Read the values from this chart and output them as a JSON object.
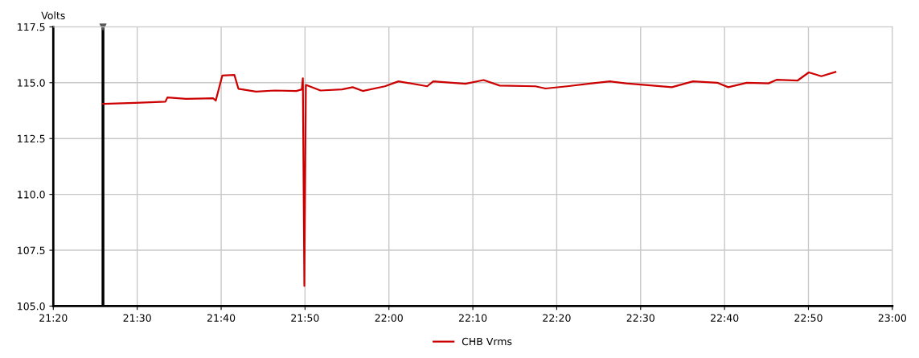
{
  "chart_data": {
    "type": "line",
    "ylabel": "Volts",
    "x": [
      21.432,
      21.496,
      21.556,
      21.56,
      21.597,
      21.651,
      21.656,
      21.669,
      21.693,
      21.701,
      21.736,
      21.773,
      21.816,
      21.827,
      21.829,
      21.832,
      21.835,
      21.864,
      21.907,
      21.928,
      21.948,
      21.992,
      22.019,
      22.076,
      22.088,
      22.152,
      22.188,
      22.22,
      22.291,
      22.311,
      22.354,
      22.396,
      22.439,
      22.471,
      22.524,
      22.562,
      22.604,
      22.652,
      22.674,
      22.711,
      22.754,
      22.77,
      22.812,
      22.834,
      22.859,
      22.887
    ],
    "series": [
      {
        "name": "CHB Vrms",
        "color": "#cc0000",
        "values": [
          114.05,
          114.1,
          114.15,
          114.34,
          114.28,
          114.3,
          114.2,
          115.32,
          115.35,
          114.73,
          114.6,
          114.65,
          114.63,
          114.7,
          115.2,
          105.9,
          114.9,
          114.65,
          114.7,
          114.8,
          114.63,
          114.84,
          115.06,
          114.84,
          115.06,
          114.95,
          115.12,
          114.87,
          114.84,
          114.74,
          114.84,
          114.95,
          115.06,
          114.97,
          114.87,
          114.8,
          115.06,
          115.0,
          114.8,
          115.0,
          114.97,
          115.13,
          115.1,
          115.46,
          115.29,
          115.48
        ]
      }
    ],
    "xlim": [
      21.3333,
      23
    ],
    "xticks": [
      {
        "value": 21.3333,
        "label": "21:20"
      },
      {
        "value": 21.5,
        "label": "21:30"
      },
      {
        "value": 21.6667,
        "label": "21:40"
      },
      {
        "value": 21.8333,
        "label": "21:50"
      },
      {
        "value": 22,
        "label": "22:00"
      },
      {
        "value": 22.1667,
        "label": "22:10"
      },
      {
        "value": 22.3333,
        "label": "22:20"
      },
      {
        "value": 22.5,
        "label": "22:30"
      },
      {
        "value": 22.6667,
        "label": "22:40"
      },
      {
        "value": 22.8333,
        "label": "22:50"
      },
      {
        "value": 23,
        "label": "23:00"
      }
    ],
    "ylim": [
      105,
      117.5
    ],
    "yticks": [
      {
        "value": 105,
        "label": "105.0"
      },
      {
        "value": 107.5,
        "label": "107.5"
      },
      {
        "value": 110,
        "label": "110.0"
      },
      {
        "value": 112.5,
        "label": "112.5"
      },
      {
        "value": 115,
        "label": "115.0"
      },
      {
        "value": 117.5,
        "label": "117.5"
      }
    ],
    "ref_lines": [
      {
        "axis": "x",
        "value": 21.432,
        "color": "#000000"
      }
    ],
    "grid": true,
    "legend": "bottom",
    "marker": "none",
    "line_style": "solid"
  }
}
